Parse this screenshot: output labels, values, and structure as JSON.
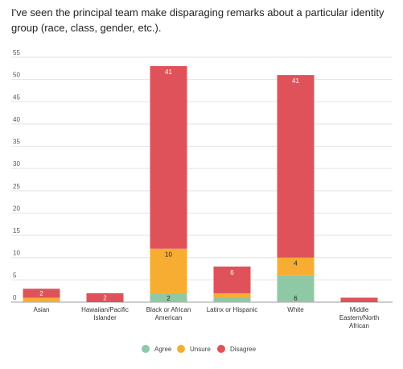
{
  "chart_data": {
    "type": "bar",
    "stacked": true,
    "title": "I've seen the principal team make disparaging remarks about a particular identity group (race, class, gender, etc.).",
    "categories": [
      [
        "Asian"
      ],
      [
        "Hawaiian/Pacific",
        "Islander"
      ],
      [
        "Black or African",
        "American"
      ],
      [
        "Latinx or Hispanic"
      ],
      [
        "White"
      ],
      [
        "Middle",
        "Eastern/North",
        "African"
      ]
    ],
    "series": [
      {
        "name": "Agree",
        "color": "#8fc8a5",
        "values": [
          0,
          0,
          2,
          1,
          6,
          0
        ]
      },
      {
        "name": "Unsure",
        "color": "#f7ad31",
        "values": [
          1,
          0,
          10,
          1,
          4,
          0
        ]
      },
      {
        "name": "Disagree",
        "color": "#df525a",
        "values": [
          2,
          2,
          41,
          6,
          41,
          1
        ]
      }
    ],
    "data_labels": [
      {
        "series": 0,
        "category": 2,
        "text": "2"
      },
      {
        "series": 0,
        "category": 4,
        "text": "6"
      },
      {
        "series": 1,
        "category": 2,
        "text": "10"
      },
      {
        "series": 1,
        "category": 4,
        "text": "4"
      },
      {
        "series": 2,
        "category": 0,
        "text": "2"
      },
      {
        "series": 2,
        "category": 1,
        "text": "2"
      },
      {
        "series": 2,
        "category": 2,
        "text": "41"
      },
      {
        "series": 2,
        "category": 3,
        "text": "6"
      },
      {
        "series": 2,
        "category": 4,
        "text": "41"
      }
    ],
    "yticks": [
      "0",
      "5",
      "10",
      "15",
      "20",
      "25",
      "30",
      "35",
      "40",
      "45",
      "50",
      "55"
    ],
    "ylim": [
      0,
      55
    ],
    "grid": true,
    "legend_position": "bottom"
  }
}
